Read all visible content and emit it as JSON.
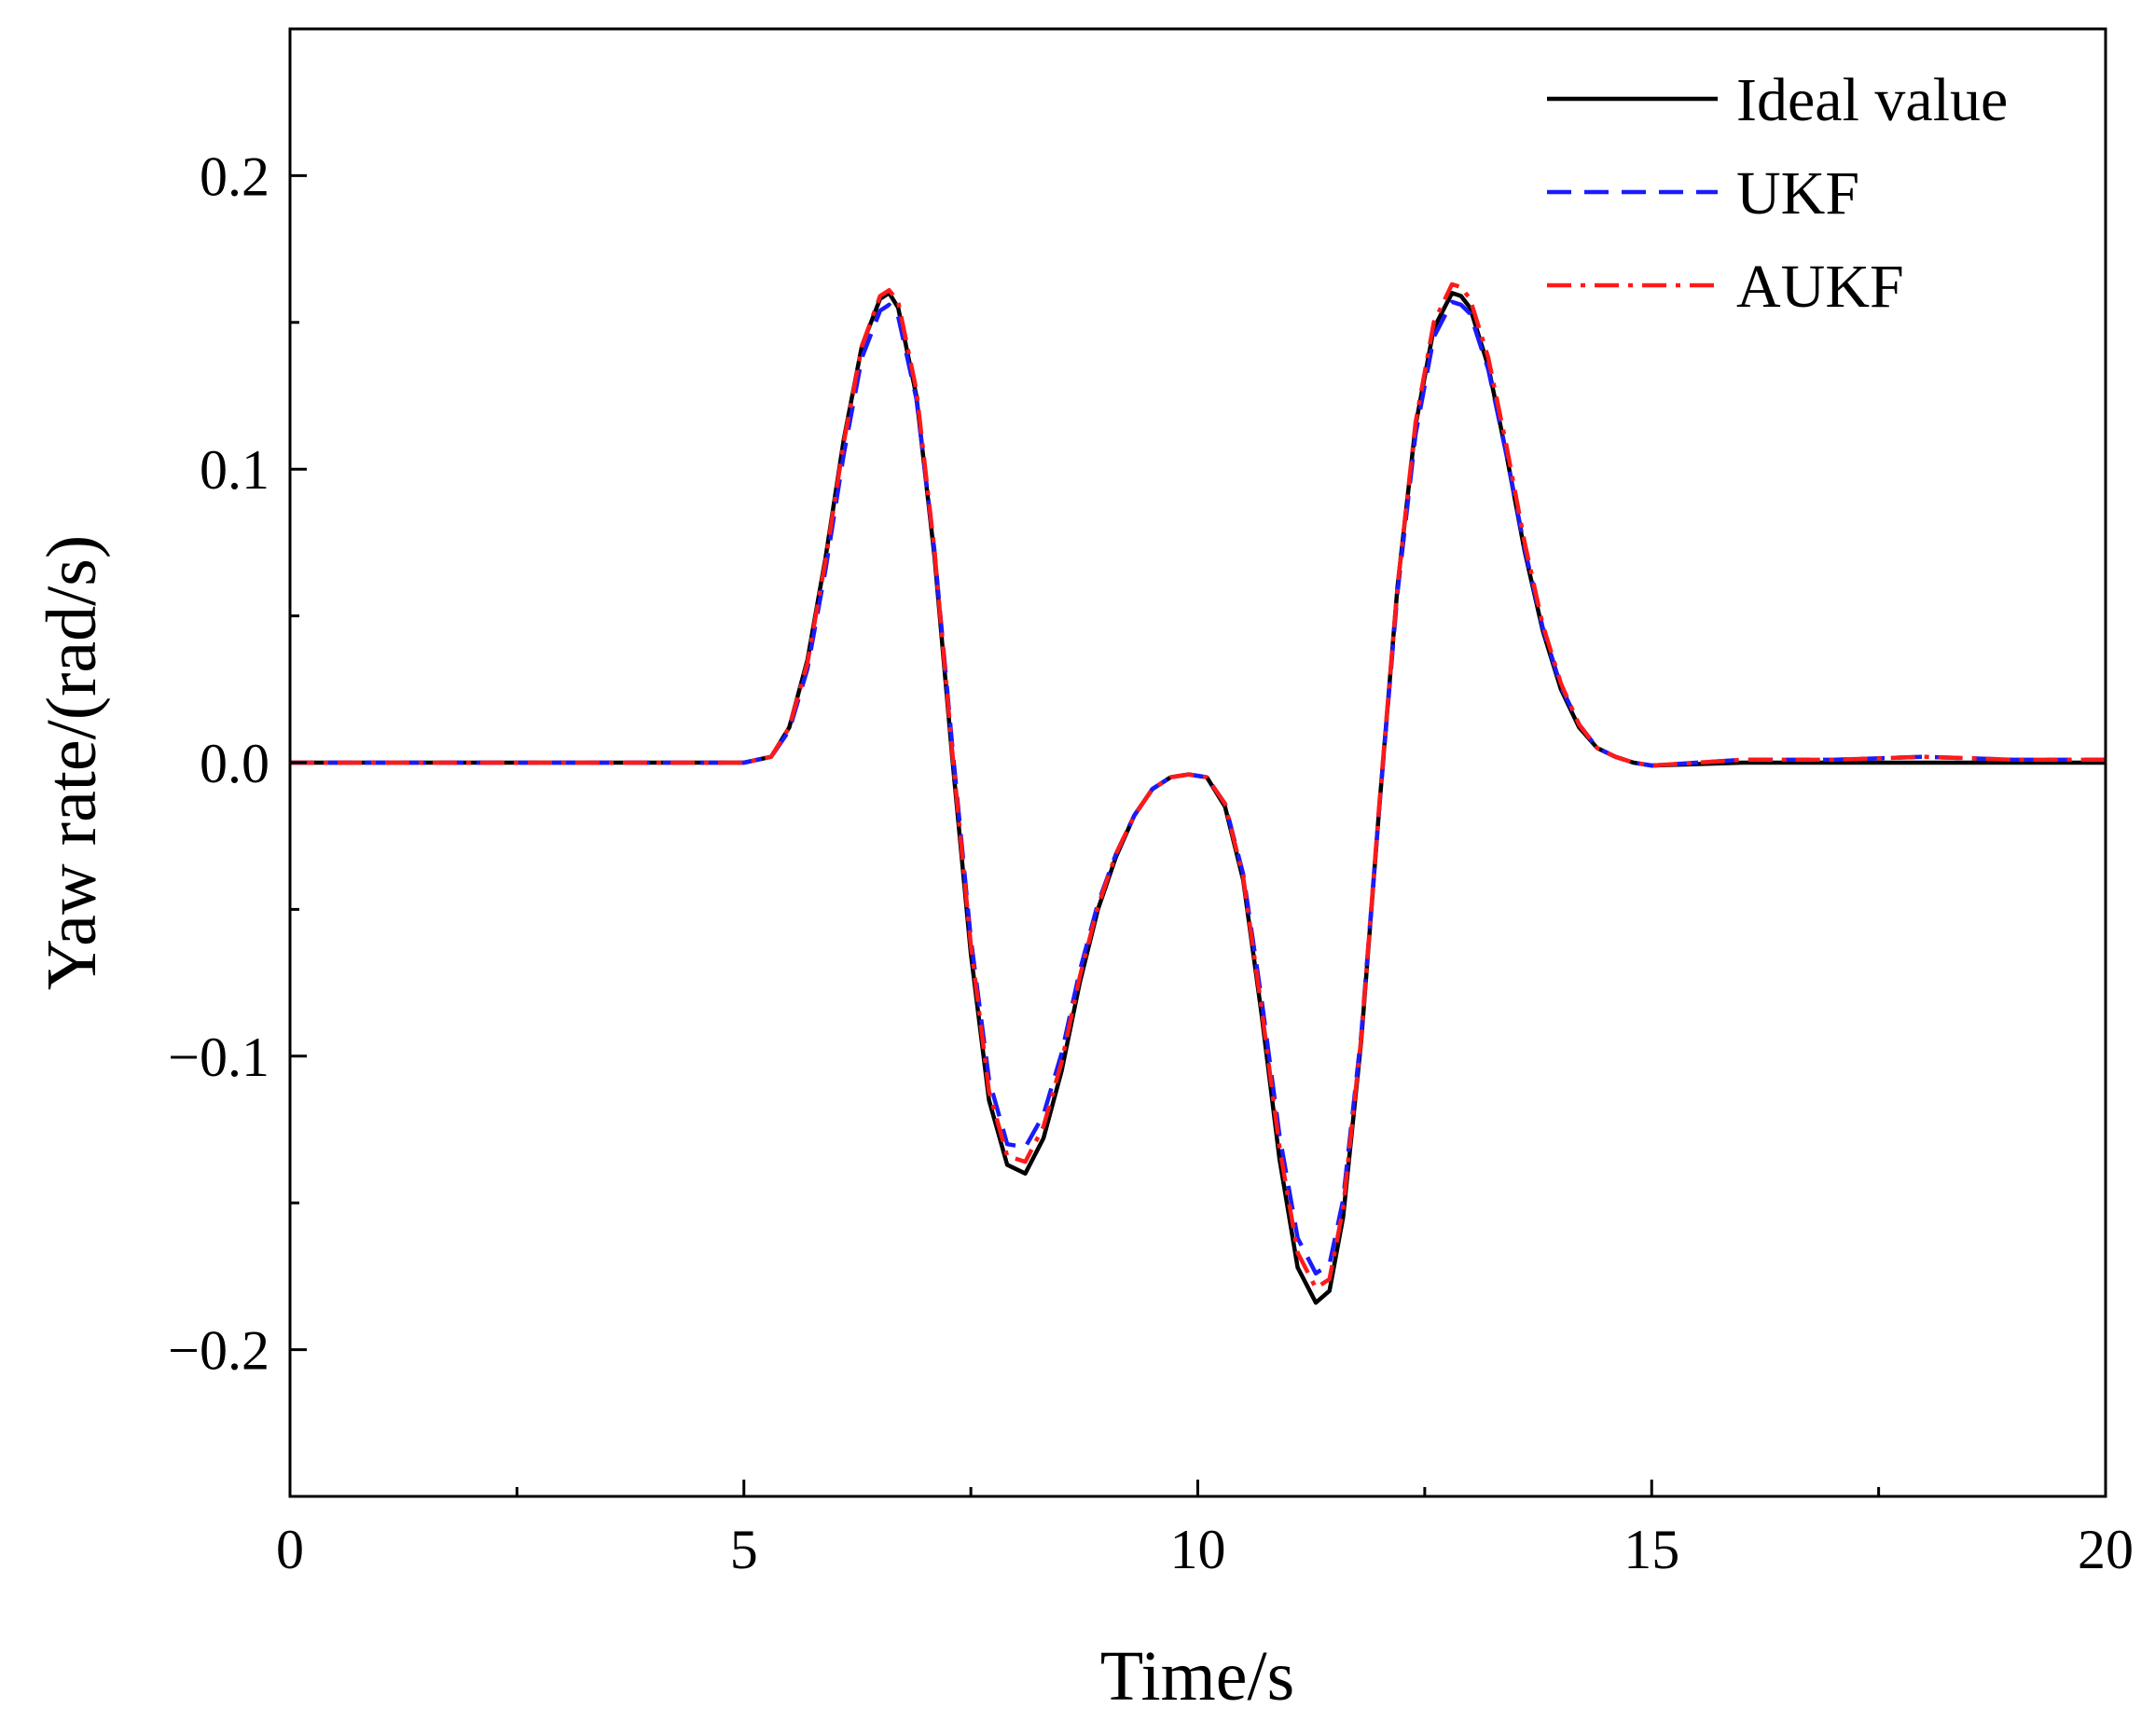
{
  "chart_data": {
    "type": "line",
    "title": "",
    "xlabel": "Time/s",
    "ylabel": "Yaw rate/(rad/s)",
    "xlim": [
      0,
      20
    ],
    "ylim": [
      -0.25,
      0.25
    ],
    "x_ticks": [
      0,
      5,
      10,
      15,
      20
    ],
    "x_tick_labels": [
      "0",
      "5",
      "10",
      "15",
      "20"
    ],
    "x_minor_ticks": [
      2.5,
      7.5,
      12.5,
      17.5
    ],
    "y_ticks": [
      -0.2,
      -0.1,
      0.0,
      0.1,
      0.2
    ],
    "y_tick_labels": [
      "−0.2",
      "−0.1",
      "0.0",
      "0.1",
      "0.2"
    ],
    "y_minor_ticks": [
      -0.15,
      -0.05,
      0.05,
      0.15
    ],
    "grid": false,
    "legend_position": "top-right",
    "series": [
      {
        "name": "Ideal value",
        "color": "#000000",
        "style": "solid",
        "x": [
          0,
          1,
          2,
          3,
          4,
          5,
          5.3,
          5.5,
          5.7,
          5.9,
          6.1,
          6.3,
          6.5,
          6.6,
          6.7,
          6.9,
          7.1,
          7.3,
          7.5,
          7.7,
          7.9,
          8.1,
          8.3,
          8.5,
          8.7,
          8.9,
          9.1,
          9.3,
          9.5,
          9.7,
          9.9,
          10.1,
          10.3,
          10.5,
          10.7,
          10.9,
          11.1,
          11.3,
          11.45,
          11.6,
          11.8,
          12.0,
          12.2,
          12.4,
          12.6,
          12.8,
          12.9,
          13.0,
          13.2,
          13.4,
          13.6,
          13.8,
          14.0,
          14.2,
          14.4,
          14.6,
          14.8,
          15,
          16,
          17,
          18,
          19,
          20
        ],
        "y": [
          0,
          0,
          0,
          0,
          0,
          0,
          0.002,
          0.012,
          0.035,
          0.07,
          0.11,
          0.142,
          0.158,
          0.16,
          0.155,
          0.125,
          0.07,
          0.0,
          -0.065,
          -0.115,
          -0.137,
          -0.14,
          -0.128,
          -0.105,
          -0.075,
          -0.05,
          -0.032,
          -0.018,
          -0.009,
          -0.005,
          -0.004,
          -0.005,
          -0.015,
          -0.04,
          -0.085,
          -0.135,
          -0.172,
          -0.184,
          -0.18,
          -0.155,
          -0.095,
          -0.015,
          0.06,
          0.115,
          0.148,
          0.16,
          0.159,
          0.155,
          0.135,
          0.105,
          0.072,
          0.045,
          0.025,
          0.012,
          0.005,
          0.002,
          0.0,
          -0.001,
          0,
          0,
          0,
          0,
          0
        ]
      },
      {
        "name": "UKF",
        "color": "#1a1aff",
        "style": "dashed",
        "x": [
          0,
          1,
          2,
          3,
          4,
          5,
          5.3,
          5.5,
          5.7,
          5.9,
          6.1,
          6.3,
          6.5,
          6.6,
          6.7,
          6.9,
          7.1,
          7.3,
          7.5,
          7.7,
          7.9,
          8.1,
          8.3,
          8.5,
          8.7,
          8.9,
          9.1,
          9.3,
          9.5,
          9.7,
          9.9,
          10.1,
          10.3,
          10.5,
          10.7,
          10.9,
          11.1,
          11.3,
          11.45,
          11.6,
          11.8,
          12.0,
          12.2,
          12.4,
          12.6,
          12.8,
          12.9,
          13.0,
          13.2,
          13.4,
          13.6,
          13.8,
          14.0,
          14.2,
          14.4,
          14.6,
          14.8,
          15,
          16,
          17,
          18,
          19,
          20
        ],
        "y": [
          0,
          0,
          0,
          0,
          0,
          0,
          0.002,
          0.011,
          0.032,
          0.066,
          0.105,
          0.138,
          0.154,
          0.156,
          0.152,
          0.124,
          0.072,
          0.004,
          -0.06,
          -0.108,
          -0.13,
          -0.131,
          -0.12,
          -0.099,
          -0.071,
          -0.048,
          -0.031,
          -0.018,
          -0.009,
          -0.005,
          -0.004,
          -0.005,
          -0.014,
          -0.038,
          -0.08,
          -0.127,
          -0.162,
          -0.174,
          -0.171,
          -0.149,
          -0.093,
          -0.015,
          0.058,
          0.112,
          0.145,
          0.157,
          0.156,
          0.153,
          0.134,
          0.105,
          0.073,
          0.046,
          0.026,
          0.013,
          0.005,
          0.002,
          0.0,
          -0.001,
          0.001,
          0.001,
          0.002,
          0.001,
          0.001
        ]
      },
      {
        "name": "AUKF",
        "color": "#ff1a1a",
        "style": "dashdot",
        "x": [
          0,
          1,
          2,
          3,
          4,
          5,
          5.3,
          5.5,
          5.7,
          5.9,
          6.1,
          6.3,
          6.5,
          6.6,
          6.7,
          6.9,
          7.1,
          7.3,
          7.5,
          7.7,
          7.9,
          8.1,
          8.3,
          8.5,
          8.7,
          8.9,
          9.1,
          9.3,
          9.5,
          9.7,
          9.9,
          10.1,
          10.3,
          10.5,
          10.7,
          10.9,
          11.1,
          11.3,
          11.45,
          11.6,
          11.8,
          12.0,
          12.2,
          12.4,
          12.6,
          12.8,
          12.9,
          13.0,
          13.2,
          13.4,
          13.6,
          13.8,
          14.0,
          14.2,
          14.4,
          14.6,
          14.8,
          15,
          16,
          17,
          18,
          19,
          20
        ],
        "y": [
          0,
          0,
          0,
          0,
          0,
          0,
          0.002,
          0.012,
          0.034,
          0.069,
          0.109,
          0.142,
          0.159,
          0.161,
          0.157,
          0.127,
          0.072,
          0.002,
          -0.062,
          -0.112,
          -0.134,
          -0.136,
          -0.124,
          -0.102,
          -0.073,
          -0.049,
          -0.031,
          -0.018,
          -0.009,
          -0.005,
          -0.004,
          -0.005,
          -0.014,
          -0.039,
          -0.083,
          -0.131,
          -0.167,
          -0.179,
          -0.176,
          -0.152,
          -0.094,
          -0.014,
          0.06,
          0.116,
          0.15,
          0.163,
          0.162,
          0.158,
          0.138,
          0.108,
          0.075,
          0.047,
          0.027,
          0.013,
          0.005,
          0.002,
          0.0,
          -0.001,
          0.001,
          0.001,
          0.002,
          0.001,
          0.001
        ]
      }
    ]
  }
}
